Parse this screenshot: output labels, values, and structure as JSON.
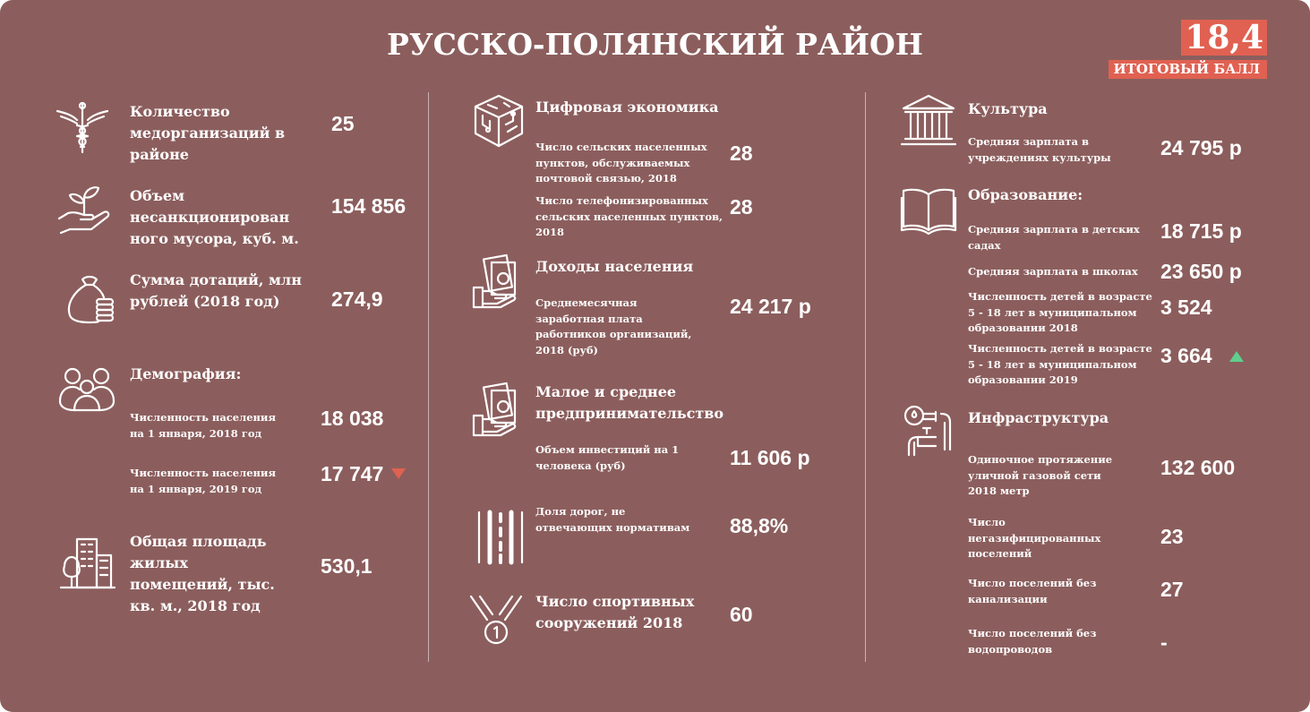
{
  "header": {
    "title": "РУССКО-ПОЛЯНСКИЙ РАЙОН",
    "score": "18,4",
    "score_label": "ИТОГОВЫЙ БАЛЛ"
  },
  "colors": {
    "background": "#8b5e5d",
    "accent": "#e06152",
    "down": "#e06152",
    "up": "#5fcf8e"
  },
  "col1": {
    "med_label": "Количество\nмедорганизаций в\nрайоне",
    "med_value": "25",
    "waste_label": "Объем\nнесанкционирован\nного мусора, куб. м.",
    "waste_value": "154 856",
    "subsidy_label": "Сумма дотаций, млн\nрублей (2018 год)",
    "subsidy_value": "274,9",
    "demo_title": "Демография:",
    "pop2018_label": "Численность населения\nна 1 января, 2018 год",
    "pop2018_value": "18 038",
    "pop2019_label": "Численность населения\nна 1 января, 2019 год",
    "pop2019_value": "17 747",
    "pop2019_trend": "down",
    "housing_label": "Общая площадь\nжилых\nпомещений, тыс.\nкв. м., 2018 год",
    "housing_value": "530,1"
  },
  "col2": {
    "digital_title": "Цифровая экономика",
    "post_label": "Число сельских населенных\nпунктов, обслуживаемых\nпочтовой связью, 2018",
    "post_value": "28",
    "phone_label": "Число телефонизированных\nсельских населенных пунктов,\n2018",
    "phone_value": "28",
    "income_title": "Доходы населения",
    "salary_label": "Среднемесячная\nзаработная плата\nработников организаций,\n2018 (руб)",
    "salary_value": "24 217 р",
    "sme_title": "Малое и среднее\nпредпринимательство",
    "invest_label": "Объем инвестиций на 1\nчеловека (руб)",
    "invest_value": "11 606 р",
    "roads_label": "Доля дорог, не\nотвечающих нормативам",
    "roads_value": "88,8%",
    "sport_label": "Число спортивных\nсооружений 2018",
    "sport_value": "60"
  },
  "col3": {
    "culture_title": "Культура",
    "culture_salary_label": "Средняя зарплата в\nучреждениях культуры",
    "culture_salary_value": "24 795 р",
    "edu_title": "Образование:",
    "kinder_label": "Средняя зарплата в детских\nсадах",
    "kinder_value": "18 715 р",
    "school_label": "Средняя зарплата в школах",
    "school_value": "23 650 р",
    "kids2018_label": "Численность детей в возрасте\n5 - 18 лет в муниципальном\nобразовании 2018",
    "kids2018_value": "3 524",
    "kids2019_label": "Численность детей в возрасте\n5 - 18 лет в муниципальном\nобразовании 2019",
    "kids2019_value": "3 664",
    "kids2019_trend": "up",
    "infra_title": "Инфраструктура",
    "gas_label": "Одиночное протяжение\nуличной газовой сети\n2018 метр",
    "gas_value": "132 600",
    "nogas_label": "Число\nнегазифицированных\nпоселений",
    "nogas_value": "23",
    "nosewer_label": "Число поселений без\nканализации",
    "nosewer_value": "27",
    "nowater_label": "Число поселений без\nводопроводов",
    "nowater_value": "-"
  },
  "icons": [
    "caduceus-icon",
    "plant-hand-icon",
    "money-bag-icon",
    "people-icon",
    "buildings-icon",
    "digital-cube-icon",
    "hand-money-icon",
    "hand-money-icon",
    "road-icon",
    "medal-icon",
    "museum-icon",
    "book-icon",
    "pipes-icon"
  ]
}
